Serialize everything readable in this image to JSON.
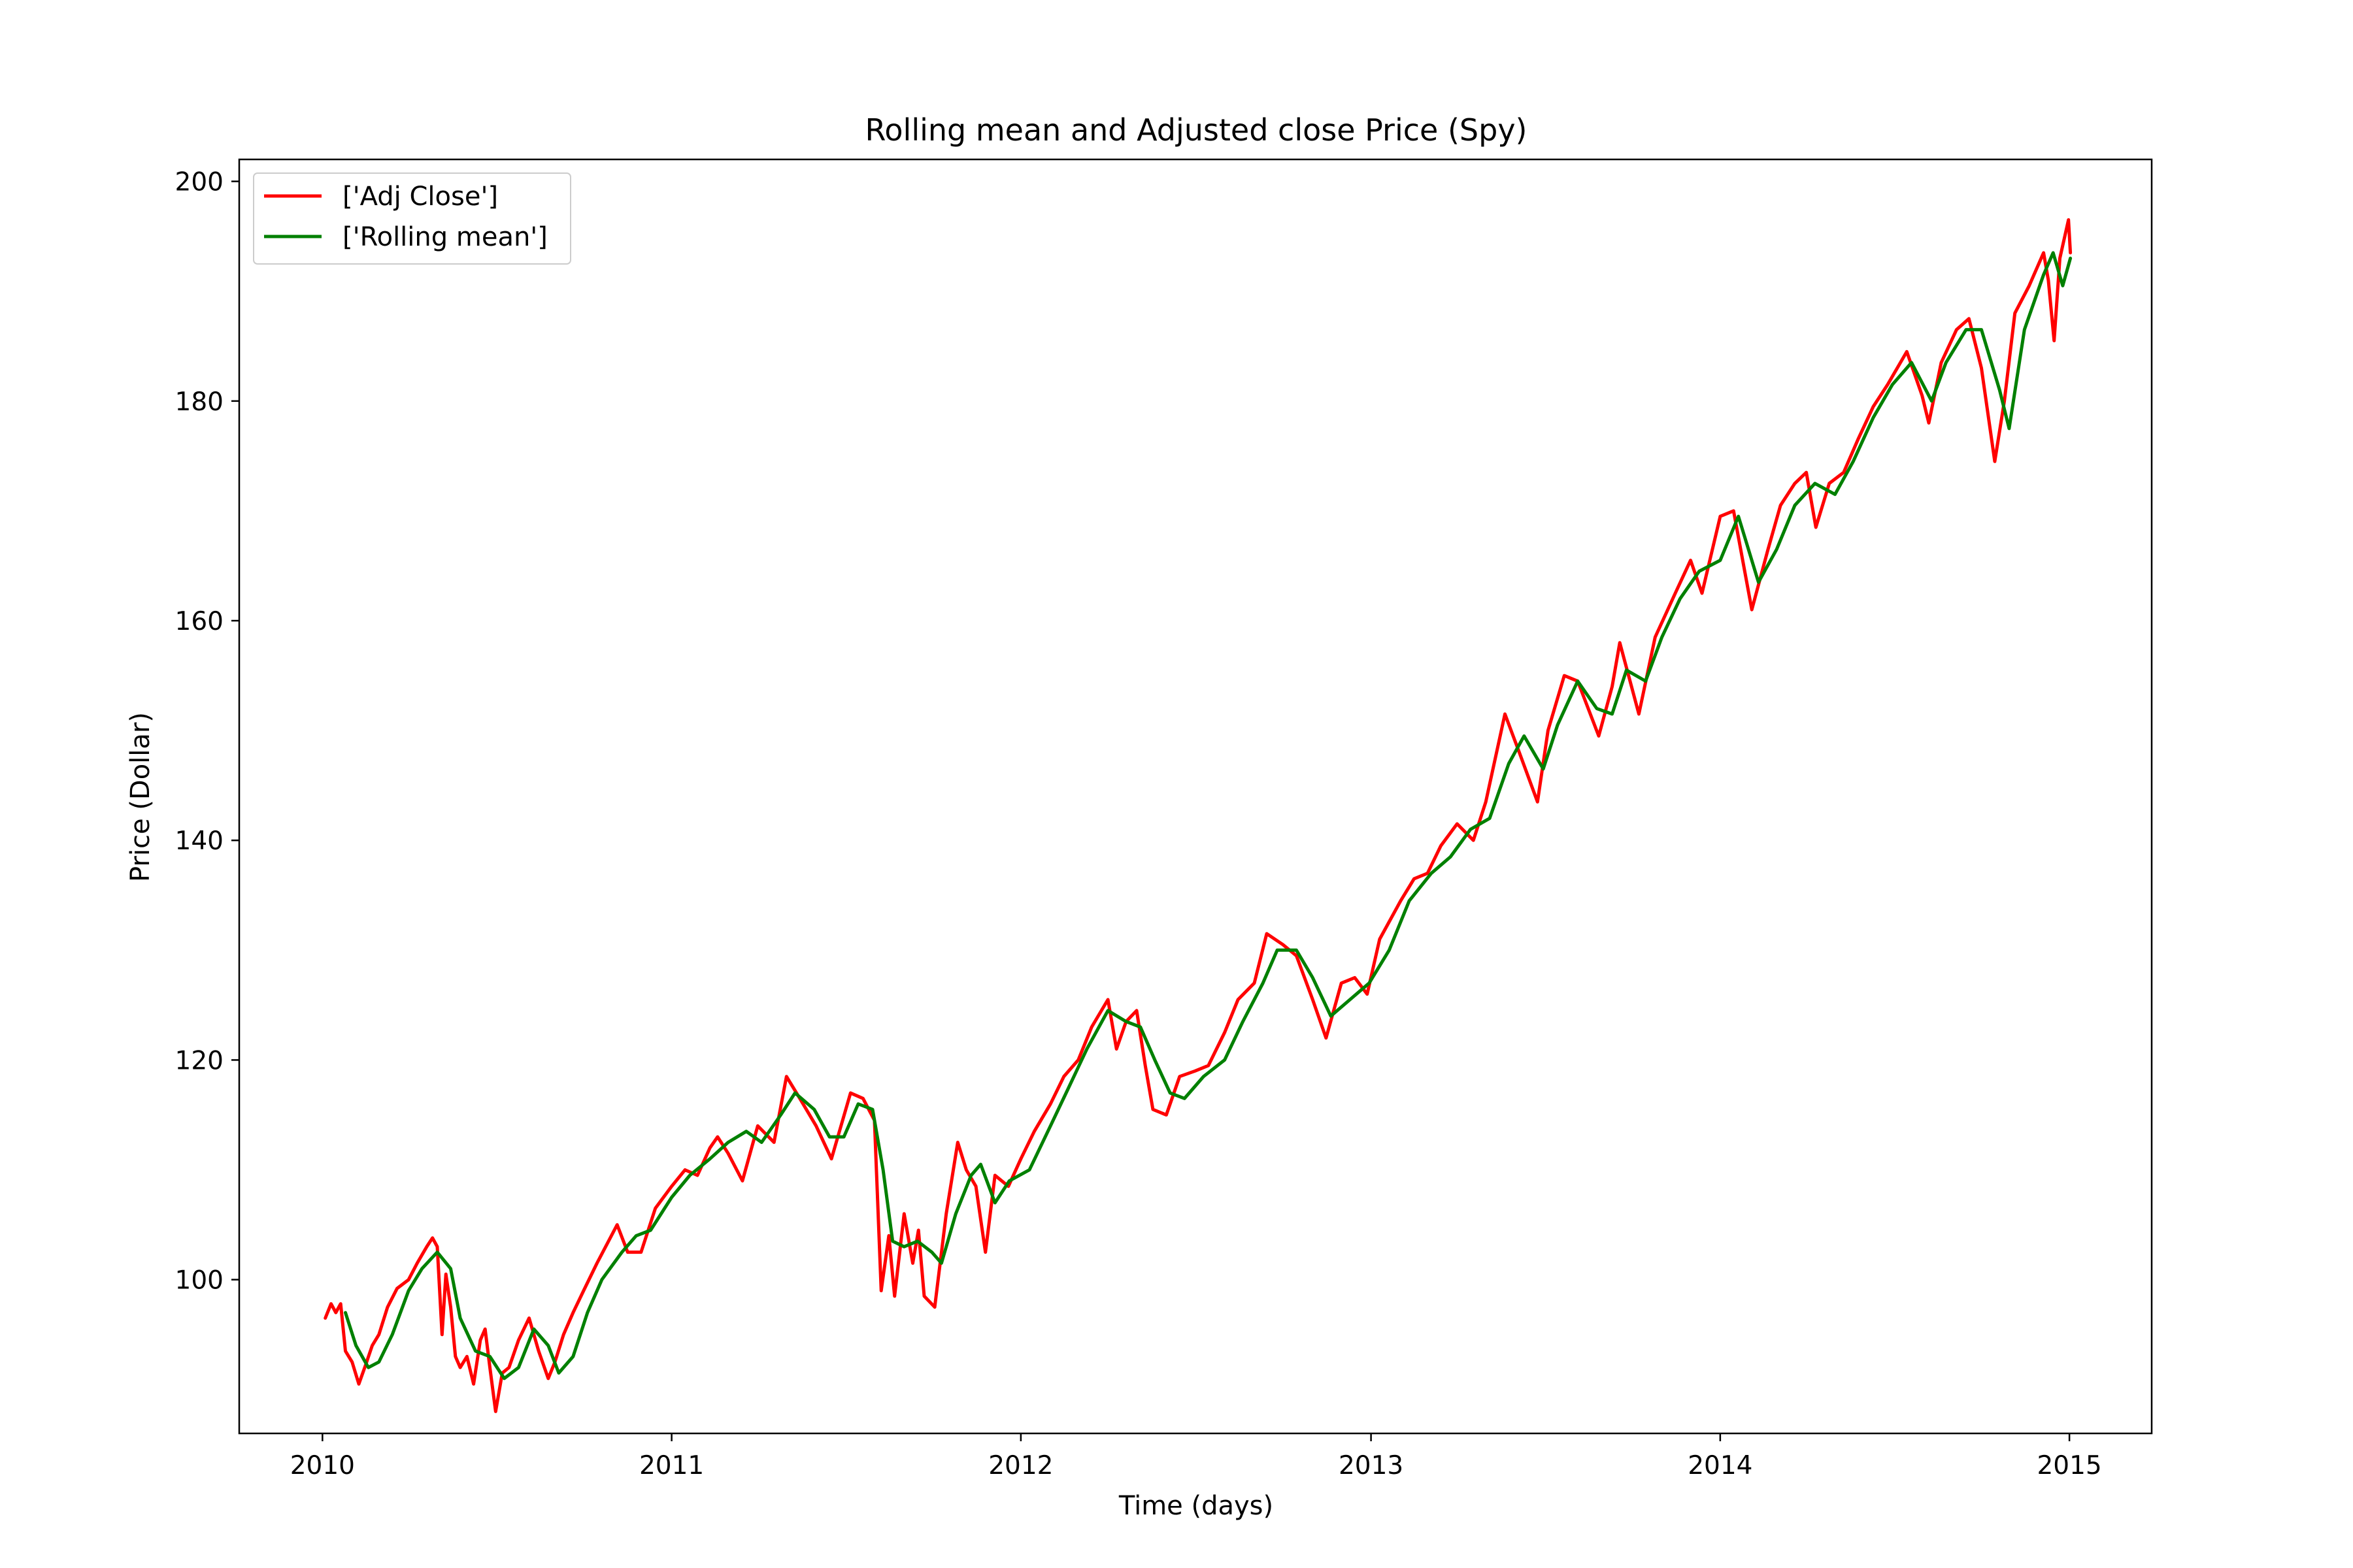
{
  "chart_data": {
    "type": "line",
    "title": "Rolling mean and Adjusted close Price (Spy)",
    "xlabel": "Time (days)",
    "ylabel": "Price (Dollar)",
    "xlim": [
      "2009-10-06",
      "2015-03-28"
    ],
    "ylim": [
      86,
      202
    ],
    "x_ticks": [
      "2010",
      "2011",
      "2012",
      "2013",
      "2014",
      "2015"
    ],
    "y_ticks": [
      "100",
      "120",
      "140",
      "160",
      "180",
      "200"
    ],
    "grid": false,
    "legend_position": "upper-left",
    "series": [
      {
        "name": "['Adj Close']",
        "color": "#ff0000",
        "points": [
          [
            "2010-01-04",
            96.5
          ],
          [
            "2010-01-10",
            97.8
          ],
          [
            "2010-01-15",
            97.0
          ],
          [
            "2010-01-20",
            97.8
          ],
          [
            "2010-01-25",
            93.5
          ],
          [
            "2010-02-01",
            92.5
          ],
          [
            "2010-02-08",
            90.5
          ],
          [
            "2010-02-15",
            92.2
          ],
          [
            "2010-02-22",
            94.0
          ],
          [
            "2010-03-01",
            95.0
          ],
          [
            "2010-03-10",
            97.5
          ],
          [
            "2010-03-20",
            99.2
          ],
          [
            "2010-04-01",
            100.0
          ],
          [
            "2010-04-10",
            101.5
          ],
          [
            "2010-04-20",
            103.0
          ],
          [
            "2010-04-26",
            103.8
          ],
          [
            "2010-05-01",
            103.0
          ],
          [
            "2010-05-06",
            95.0
          ],
          [
            "2010-05-10",
            100.5
          ],
          [
            "2010-05-15",
            97.5
          ],
          [
            "2010-05-20",
            93.0
          ],
          [
            "2010-05-25",
            92.0
          ],
          [
            "2010-06-01",
            93.0
          ],
          [
            "2010-06-08",
            90.5
          ],
          [
            "2010-06-15",
            94.5
          ],
          [
            "2010-06-20",
            95.5
          ],
          [
            "2010-06-25",
            92.0
          ],
          [
            "2010-07-01",
            88.0
          ],
          [
            "2010-07-08",
            91.5
          ],
          [
            "2010-07-15",
            92.0
          ],
          [
            "2010-07-25",
            94.5
          ],
          [
            "2010-08-05",
            96.5
          ],
          [
            "2010-08-15",
            93.5
          ],
          [
            "2010-08-25",
            91.0
          ],
          [
            "2010-09-01",
            92.5
          ],
          [
            "2010-09-10",
            95.0
          ],
          [
            "2010-09-20",
            97.0
          ],
          [
            "2010-10-01",
            99.0
          ],
          [
            "2010-10-15",
            101.5
          ],
          [
            "2010-11-05",
            105.0
          ],
          [
            "2010-11-16",
            102.5
          ],
          [
            "2010-11-30",
            102.5
          ],
          [
            "2010-12-15",
            106.5
          ],
          [
            "2011-01-01",
            108.5
          ],
          [
            "2011-01-15",
            110.0
          ],
          [
            "2011-01-28",
            109.5
          ],
          [
            "2011-02-10",
            112.0
          ],
          [
            "2011-02-18",
            113.0
          ],
          [
            "2011-03-01",
            111.5
          ],
          [
            "2011-03-16",
            109.0
          ],
          [
            "2011-04-01",
            114.0
          ],
          [
            "2011-04-18",
            112.5
          ],
          [
            "2011-05-01",
            118.5
          ],
          [
            "2011-05-15",
            116.5
          ],
          [
            "2011-06-01",
            114.0
          ],
          [
            "2011-06-17",
            111.0
          ],
          [
            "2011-07-07",
            117.0
          ],
          [
            "2011-07-20",
            116.5
          ],
          [
            "2011-08-01",
            114.5
          ],
          [
            "2011-08-08",
            99.0
          ],
          [
            "2011-08-16",
            104.0
          ],
          [
            "2011-08-22",
            98.5
          ],
          [
            "2011-09-01",
            106.0
          ],
          [
            "2011-09-10",
            101.5
          ],
          [
            "2011-09-16",
            104.5
          ],
          [
            "2011-09-22",
            98.5
          ],
          [
            "2011-10-03",
            97.5
          ],
          [
            "2011-10-15",
            106.0
          ],
          [
            "2011-10-27",
            112.5
          ],
          [
            "2011-11-05",
            110.0
          ],
          [
            "2011-11-15",
            108.5
          ],
          [
            "2011-11-25",
            102.5
          ],
          [
            "2011-12-05",
            109.5
          ],
          [
            "2011-12-19",
            108.5
          ],
          [
            "2012-01-01",
            111.0
          ],
          [
            "2012-01-15",
            113.5
          ],
          [
            "2012-02-01",
            116.0
          ],
          [
            "2012-02-15",
            118.5
          ],
          [
            "2012-03-01",
            120.0
          ],
          [
            "2012-03-15",
            123.0
          ],
          [
            "2012-04-01",
            125.5
          ],
          [
            "2012-04-10",
            121.0
          ],
          [
            "2012-04-20",
            123.5
          ],
          [
            "2012-05-01",
            124.5
          ],
          [
            "2012-05-10",
            119.5
          ],
          [
            "2012-05-18",
            115.5
          ],
          [
            "2012-06-01",
            115.0
          ],
          [
            "2012-06-15",
            118.5
          ],
          [
            "2012-07-01",
            119.0
          ],
          [
            "2012-07-15",
            119.5
          ],
          [
            "2012-08-01",
            122.5
          ],
          [
            "2012-08-15",
            125.5
          ],
          [
            "2012-09-01",
            127.0
          ],
          [
            "2012-09-14",
            131.5
          ],
          [
            "2012-10-01",
            130.5
          ],
          [
            "2012-10-15",
            129.5
          ],
          [
            "2012-11-01",
            125.5
          ],
          [
            "2012-11-15",
            122.0
          ],
          [
            "2012-12-01",
            127.0
          ],
          [
            "2012-12-15",
            127.5
          ],
          [
            "2012-12-28",
            126.0
          ],
          [
            "2013-01-10",
            131.0
          ],
          [
            "2013-02-01",
            134.5
          ],
          [
            "2013-02-15",
            136.5
          ],
          [
            "2013-03-01",
            137.0
          ],
          [
            "2013-03-15",
            139.5
          ],
          [
            "2013-04-01",
            141.5
          ],
          [
            "2013-04-18",
            140.0
          ],
          [
            "2013-05-01",
            143.5
          ],
          [
            "2013-05-21",
            151.5
          ],
          [
            "2013-06-05",
            148.0
          ],
          [
            "2013-06-24",
            143.5
          ],
          [
            "2013-07-05",
            150.0
          ],
          [
            "2013-07-22",
            155.0
          ],
          [
            "2013-08-05",
            154.5
          ],
          [
            "2013-08-27",
            149.5
          ],
          [
            "2013-09-10",
            154.0
          ],
          [
            "2013-09-18",
            158.0
          ],
          [
            "2013-10-08",
            151.5
          ],
          [
            "2013-10-25",
            158.5
          ],
          [
            "2013-11-15",
            162.5
          ],
          [
            "2013-12-01",
            165.5
          ],
          [
            "2013-12-13",
            162.5
          ],
          [
            "2014-01-01",
            169.5
          ],
          [
            "2014-01-15",
            170.0
          ],
          [
            "2014-02-03",
            161.0
          ],
          [
            "2014-02-20",
            166.5
          ],
          [
            "2014-03-05",
            170.5
          ],
          [
            "2014-03-20",
            172.5
          ],
          [
            "2014-04-01",
            173.5
          ],
          [
            "2014-04-11",
            168.5
          ],
          [
            "2014-04-25",
            172.5
          ],
          [
            "2014-05-10",
            173.5
          ],
          [
            "2014-05-25",
            176.5
          ],
          [
            "2014-06-10",
            179.5
          ],
          [
            "2014-06-25",
            181.5
          ],
          [
            "2014-07-15",
            184.5
          ],
          [
            "2014-07-31",
            180.5
          ],
          [
            "2014-08-07",
            178.0
          ],
          [
            "2014-08-20",
            183.5
          ],
          [
            "2014-09-05",
            186.5
          ],
          [
            "2014-09-18",
            187.5
          ],
          [
            "2014-10-01",
            183.0
          ],
          [
            "2014-10-15",
            174.5
          ],
          [
            "2014-10-25",
            180.0
          ],
          [
            "2014-11-05",
            188.0
          ],
          [
            "2014-11-20",
            190.5
          ],
          [
            "2014-12-05",
            193.5
          ],
          [
            "2014-12-10",
            191.0
          ],
          [
            "2014-12-16",
            185.5
          ],
          [
            "2014-12-22",
            193.0
          ],
          [
            "2014-12-31",
            196.5
          ],
          [
            "2015-01-02",
            193.5
          ]
        ]
      },
      {
        "name": "['Rolling mean']",
        "color": "#008000",
        "points": [
          [
            "2010-01-25",
            97.0
          ],
          [
            "2010-02-05",
            94.0
          ],
          [
            "2010-02-18",
            92.0
          ],
          [
            "2010-03-01",
            92.5
          ],
          [
            "2010-03-15",
            95.0
          ],
          [
            "2010-04-01",
            99.0
          ],
          [
            "2010-04-15",
            101.0
          ],
          [
            "2010-05-01",
            102.5
          ],
          [
            "2010-05-15",
            101.0
          ],
          [
            "2010-05-25",
            96.5
          ],
          [
            "2010-06-10",
            93.5
          ],
          [
            "2010-06-25",
            93.0
          ],
          [
            "2010-07-10",
            91.0
          ],
          [
            "2010-07-25",
            92.0
          ],
          [
            "2010-08-10",
            95.5
          ],
          [
            "2010-08-25",
            94.0
          ],
          [
            "2010-09-05",
            91.5
          ],
          [
            "2010-09-20",
            93.0
          ],
          [
            "2010-10-05",
            97.0
          ],
          [
            "2010-10-20",
            100.0
          ],
          [
            "2010-11-10",
            102.5
          ],
          [
            "2010-11-25",
            104.0
          ],
          [
            "2010-12-10",
            104.5
          ],
          [
            "2011-01-01",
            107.5
          ],
          [
            "2011-01-20",
            109.5
          ],
          [
            "2011-02-10",
            111.0
          ],
          [
            "2011-03-01",
            112.5
          ],
          [
            "2011-03-20",
            113.5
          ],
          [
            "2011-04-05",
            112.5
          ],
          [
            "2011-04-25",
            115.0
          ],
          [
            "2011-05-10",
            117.0
          ],
          [
            "2011-05-30",
            115.5
          ],
          [
            "2011-06-15",
            113.0
          ],
          [
            "2011-06-30",
            113.0
          ],
          [
            "2011-07-15",
            116.0
          ],
          [
            "2011-07-30",
            115.5
          ],
          [
            "2011-08-10",
            110.0
          ],
          [
            "2011-08-20",
            103.5
          ],
          [
            "2011-09-01",
            103.0
          ],
          [
            "2011-09-15",
            103.5
          ],
          [
            "2011-09-30",
            102.5
          ],
          [
            "2011-10-10",
            101.5
          ],
          [
            "2011-10-25",
            106.0
          ],
          [
            "2011-11-10",
            109.5
          ],
          [
            "2011-11-20",
            110.5
          ],
          [
            "2011-12-05",
            107.0
          ],
          [
            "2011-12-20",
            109.0
          ],
          [
            "2012-01-10",
            110.0
          ],
          [
            "2012-02-01",
            114.0
          ],
          [
            "2012-02-20",
            117.5
          ],
          [
            "2012-03-10",
            121.0
          ],
          [
            "2012-04-01",
            124.5
          ],
          [
            "2012-04-20",
            123.5
          ],
          [
            "2012-05-05",
            123.0
          ],
          [
            "2012-05-20",
            120.0
          ],
          [
            "2012-06-05",
            117.0
          ],
          [
            "2012-06-20",
            116.5
          ],
          [
            "2012-07-10",
            118.5
          ],
          [
            "2012-08-01",
            120.0
          ],
          [
            "2012-08-20",
            123.5
          ],
          [
            "2012-09-10",
            127.0
          ],
          [
            "2012-09-25",
            130.0
          ],
          [
            "2012-10-15",
            130.0
          ],
          [
            "2012-11-01",
            127.5
          ],
          [
            "2012-11-20",
            124.0
          ],
          [
            "2012-12-10",
            125.5
          ],
          [
            "2012-12-30",
            127.0
          ],
          [
            "2013-01-20",
            130.0
          ],
          [
            "2013-02-10",
            134.5
          ],
          [
            "2013-03-05",
            137.0
          ],
          [
            "2013-03-25",
            138.5
          ],
          [
            "2013-04-15",
            141.0
          ],
          [
            "2013-05-05",
            142.0
          ],
          [
            "2013-05-25",
            147.0
          ],
          [
            "2013-06-10",
            149.5
          ],
          [
            "2013-06-30",
            146.5
          ],
          [
            "2013-07-15",
            150.5
          ],
          [
            "2013-08-05",
            154.5
          ],
          [
            "2013-08-25",
            152.0
          ],
          [
            "2013-09-10",
            151.5
          ],
          [
            "2013-09-25",
            155.5
          ],
          [
            "2013-10-15",
            154.5
          ],
          [
            "2013-11-01",
            158.5
          ],
          [
            "2013-11-20",
            162.0
          ],
          [
            "2013-12-10",
            164.5
          ],
          [
            "2014-01-01",
            165.5
          ],
          [
            "2014-01-20",
            169.5
          ],
          [
            "2014-02-10",
            163.5
          ],
          [
            "2014-03-01",
            166.5
          ],
          [
            "2014-03-20",
            170.5
          ],
          [
            "2014-04-10",
            172.5
          ],
          [
            "2014-05-01",
            171.5
          ],
          [
            "2014-05-20",
            174.5
          ],
          [
            "2014-06-10",
            178.5
          ],
          [
            "2014-06-30",
            181.5
          ],
          [
            "2014-07-20",
            183.5
          ],
          [
            "2014-08-10",
            180.0
          ],
          [
            "2014-08-25",
            183.5
          ],
          [
            "2014-09-15",
            186.5
          ],
          [
            "2014-10-01",
            186.5
          ],
          [
            "2014-10-20",
            181.0
          ],
          [
            "2014-10-30",
            177.5
          ],
          [
            "2014-11-15",
            186.5
          ],
          [
            "2014-12-05",
            191.5
          ],
          [
            "2014-12-15",
            193.5
          ],
          [
            "2014-12-25",
            190.5
          ],
          [
            "2015-01-02",
            193.0
          ]
        ]
      }
    ]
  }
}
